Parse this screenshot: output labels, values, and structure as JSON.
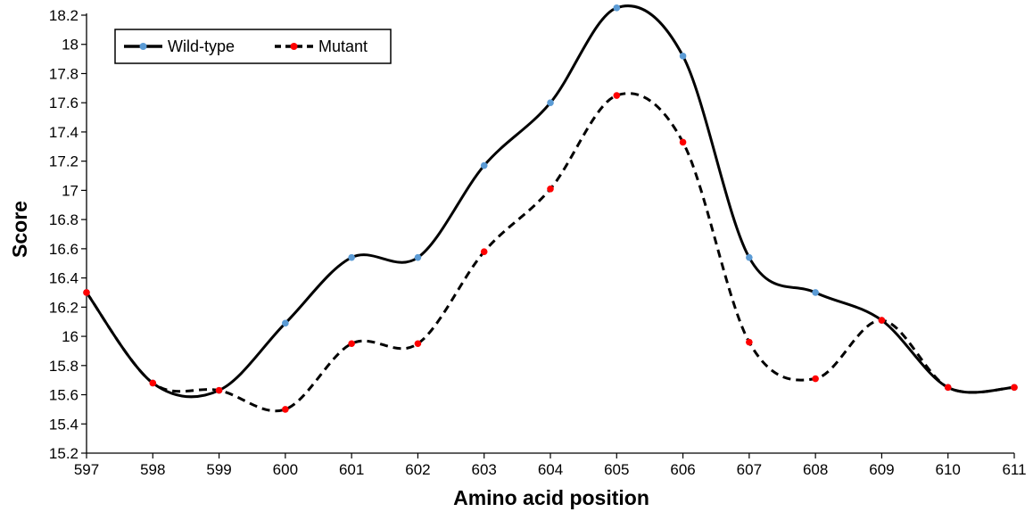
{
  "chart_data": {
    "type": "line",
    "title": "",
    "xlabel": "Amino acid position",
    "ylabel": "Score",
    "x": [
      597,
      598,
      599,
      600,
      601,
      602,
      603,
      604,
      605,
      606,
      607,
      608,
      609,
      610,
      611
    ],
    "xlim": [
      597,
      611
    ],
    "ylim": [
      15.2,
      18.2
    ],
    "y_ticks": [
      15.2,
      15.4,
      15.6,
      15.8,
      16,
      16.2,
      16.4,
      16.6,
      16.8,
      17,
      17.2,
      17.4,
      17.6,
      17.8,
      18,
      18.2
    ],
    "grid": false,
    "legend_position": "top-left",
    "series": [
      {
        "name": "Wild-type",
        "line_style": "solid",
        "line_color": "#000000",
        "marker_color": "#5b9bd5",
        "values": [
          16.3,
          15.68,
          15.63,
          16.09,
          16.54,
          16.54,
          17.17,
          17.6,
          18.25,
          17.92,
          16.54,
          16.3,
          16.11,
          15.65,
          15.65
        ]
      },
      {
        "name": "Mutant",
        "line_style": "dashed",
        "line_color": "#000000",
        "marker_color": "#ff0000",
        "values": [
          16.3,
          15.68,
          15.63,
          15.5,
          15.95,
          15.95,
          16.58,
          17.01,
          17.65,
          17.33,
          15.96,
          15.71,
          16.11,
          15.65,
          15.65
        ]
      }
    ]
  }
}
